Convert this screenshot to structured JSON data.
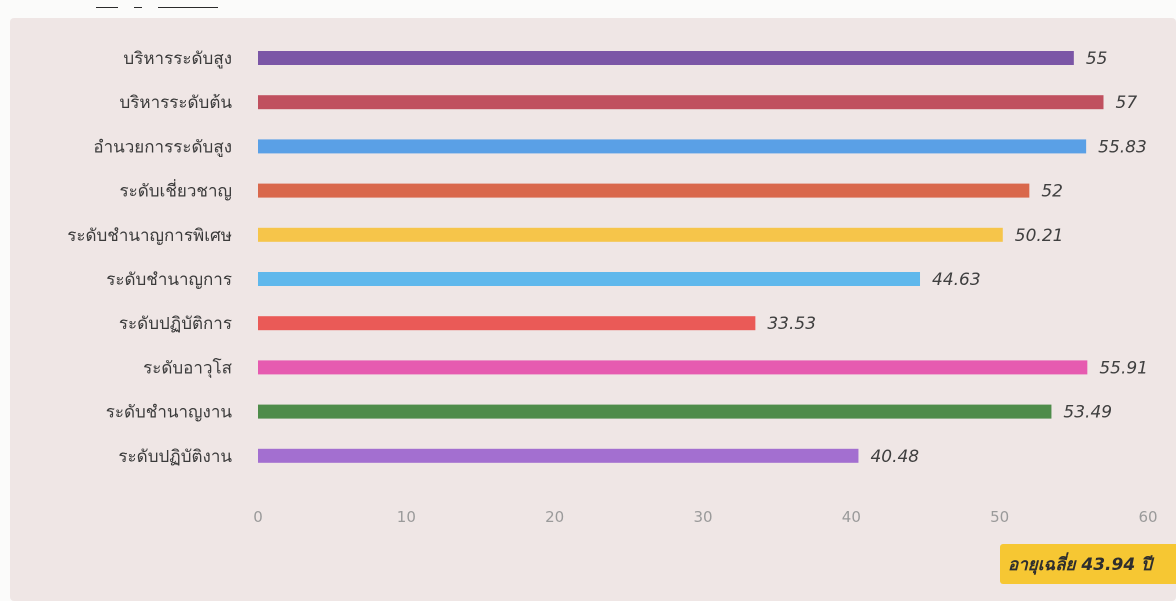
{
  "chart_data": {
    "type": "bar",
    "orientation": "horizontal",
    "categories": [
      "บริหารระดับสูง",
      "บริหารระดับต้น",
      "อำนวยการระดับสูง",
      "ระดับเชี่ยวชาญ",
      "ระดับชำนาญการพิเศษ",
      "ระดับชำนาญการ",
      "ระดับปฏิบัติการ",
      "ระดับอาวุโส",
      "ระดับชำนาญงาน",
      "ระดับปฏิบัติงาน"
    ],
    "values": [
      55,
      57,
      55.83,
      52,
      50.21,
      44.63,
      33.53,
      55.91,
      53.49,
      40.48
    ],
    "value_labels": [
      "55",
      "57",
      "55.83",
      "52",
      "50.21",
      "44.63",
      "33.53",
      "55.91",
      "53.49",
      "40.48"
    ],
    "colors": [
      "#7b56a6",
      "#c0505f",
      "#5aa0e6",
      "#d9684c",
      "#f6c54a",
      "#5fb8ec",
      "#ea5a57",
      "#e65bb0",
      "#4e8c4a",
      "#a36fd0"
    ],
    "xlim": [
      0,
      60
    ],
    "ticks": [
      "0",
      "10",
      "20",
      "30",
      "40",
      "50",
      "60"
    ],
    "grid": false,
    "title": "",
    "xlabel": "",
    "ylabel": ""
  },
  "annotation": {
    "average_label": "อายุเฉลี่ย 43.94 ปี",
    "color": "#f6c733"
  }
}
